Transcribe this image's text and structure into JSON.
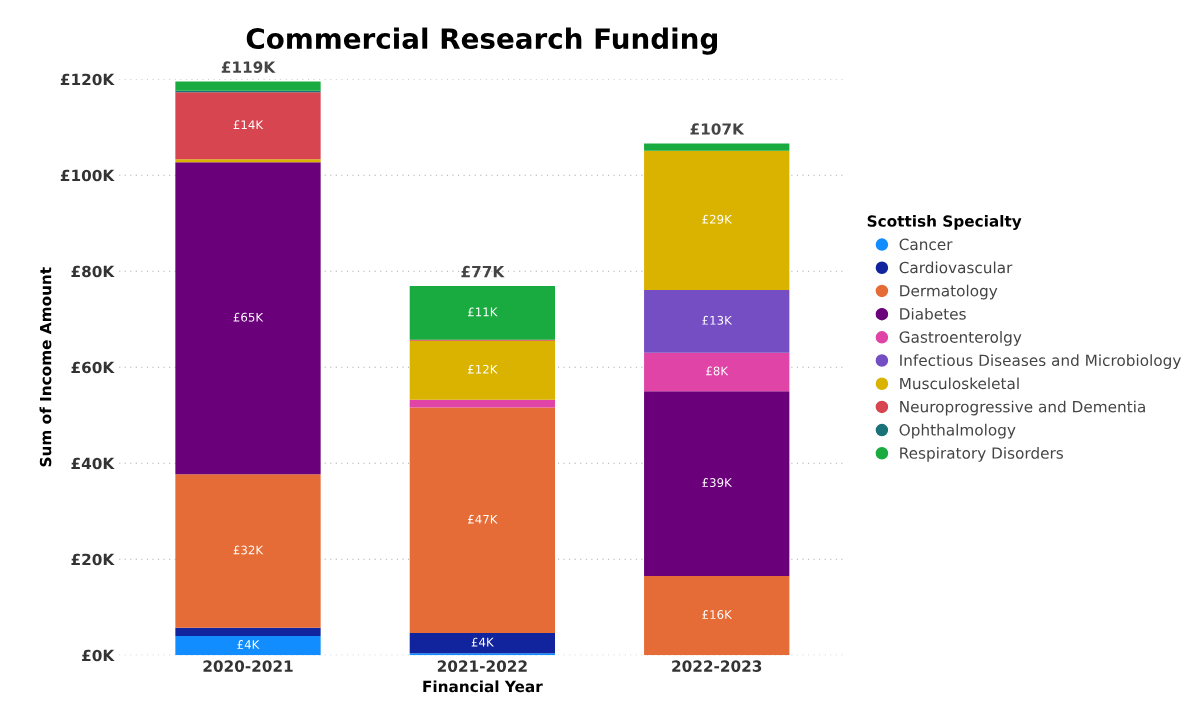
{
  "chart_data": {
    "type": "bar",
    "stacked": true,
    "title": "Commercial Research Funding",
    "xlabel": "Financial Year",
    "ylabel": "Sum of Income Amount",
    "legend_title": "Scottish Specialty",
    "legend": "right",
    "grid": "y",
    "categories": [
      "2020-2021",
      "2021-2022",
      "2022-2023"
    ],
    "ylim": [
      0,
      120000
    ],
    "yticks": [
      {
        "value": 0,
        "label": "£0K"
      },
      {
        "value": 20000,
        "label": "£20K"
      },
      {
        "value": 40000,
        "label": "£40K"
      },
      {
        "value": 60000,
        "label": "£60K"
      },
      {
        "value": 80000,
        "label": "£80K"
      },
      {
        "value": 100000,
        "label": "£100K"
      },
      {
        "value": 120000,
        "label": "£120K"
      }
    ],
    "totals": [
      "£119K",
      "£77K",
      "£107K"
    ],
    "series": [
      {
        "name": "Cancer",
        "color": "#118dff",
        "values": [
          4000,
          400,
          null
        ],
        "value_labels": [
          "£4K",
          null,
          null
        ]
      },
      {
        "name": "Cardiovascular",
        "color": "#12239e",
        "values": [
          1700,
          4200,
          null
        ],
        "value_labels": [
          null,
          "£4K",
          null
        ]
      },
      {
        "name": "Dermatology",
        "color": "#e66c37",
        "values": [
          32000,
          47000,
          16500
        ],
        "value_labels": [
          "£32K",
          "£47K",
          "£16K"
        ]
      },
      {
        "name": "Diabetes",
        "color": "#6b007b",
        "values": [
          65000,
          null,
          38500
        ],
        "value_labels": [
          "£65K",
          null,
          "£39K"
        ]
      },
      {
        "name": "Gastroenterolgy",
        "color": "#e044a7",
        "values": [
          null,
          1600,
          8000
        ],
        "value_labels": [
          null,
          null,
          "£8K"
        ]
      },
      {
        "name": "Infectious Diseases and Microbiology",
        "color": "#744ec2",
        "values": [
          null,
          null,
          13100
        ],
        "value_labels": [
          null,
          null,
          "£13K"
        ]
      },
      {
        "name": "Musculoskeletal",
        "color": "#d9b300",
        "values": [
          600,
          12300,
          29000
        ],
        "value_labels": [
          null,
          "£12K",
          "£29K"
        ]
      },
      {
        "name": "Neuroprogressive and Dementia",
        "color": "#d64550",
        "values": [
          14000,
          200,
          null
        ],
        "value_labels": [
          "£14K",
          null,
          null
        ]
      },
      {
        "name": "Ophthalmology",
        "color": "#197278",
        "values": [
          300,
          null,
          null
        ],
        "value_labels": [
          null,
          null,
          null
        ]
      },
      {
        "name": "Respiratory Disorders",
        "color": "#1aab40",
        "values": [
          1900,
          11200,
          1500
        ],
        "value_labels": [
          null,
          "£11K",
          null
        ]
      }
    ]
  }
}
